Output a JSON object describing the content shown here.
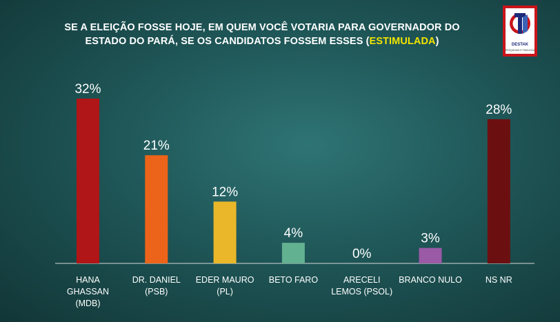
{
  "title": {
    "line1": "SE A ELEIÇÃO FOSSE HOJE, EM QUEM VOCÊ VOTARIA PARA GOVERNADOR DO",
    "line2_prefix": "ESTADO DO PARÁ, SE OS CANDIDATOS FOSSEM ESSES (",
    "line2_highlight": "ESTIMULADA",
    "line2_suffix": ")"
  },
  "logo": {
    "name": "DESTAK",
    "tagline": "PESQUISAS E PUBLICIDADE"
  },
  "chart_data": {
    "type": "bar",
    "categories": [
      [
        "HANA",
        "GHASSAN",
        "(MDB)"
      ],
      [
        "DR. DANIEL",
        "(PSB)"
      ],
      [
        "EDER MAURO",
        "(PL)"
      ],
      [
        "BETO FARO"
      ],
      [
        "ARECELI",
        "LEMOS (PSOL)"
      ],
      [
        "BRANCO NULO"
      ],
      [
        "NS NR"
      ]
    ],
    "values": [
      32,
      21,
      12,
      4,
      0,
      3,
      28
    ],
    "data_labels": [
      "32%",
      "21%",
      "12%",
      "4%",
      "0%",
      "3%",
      "28%"
    ],
    "colors": [
      "#b01517",
      "#ec6419",
      "#e9b729",
      "#62b191",
      "#8e8e8e",
      "#9b5aa6",
      "#6c0f10"
    ],
    "ylim": [
      0,
      32
    ],
    "grid": false,
    "legend": "none"
  }
}
